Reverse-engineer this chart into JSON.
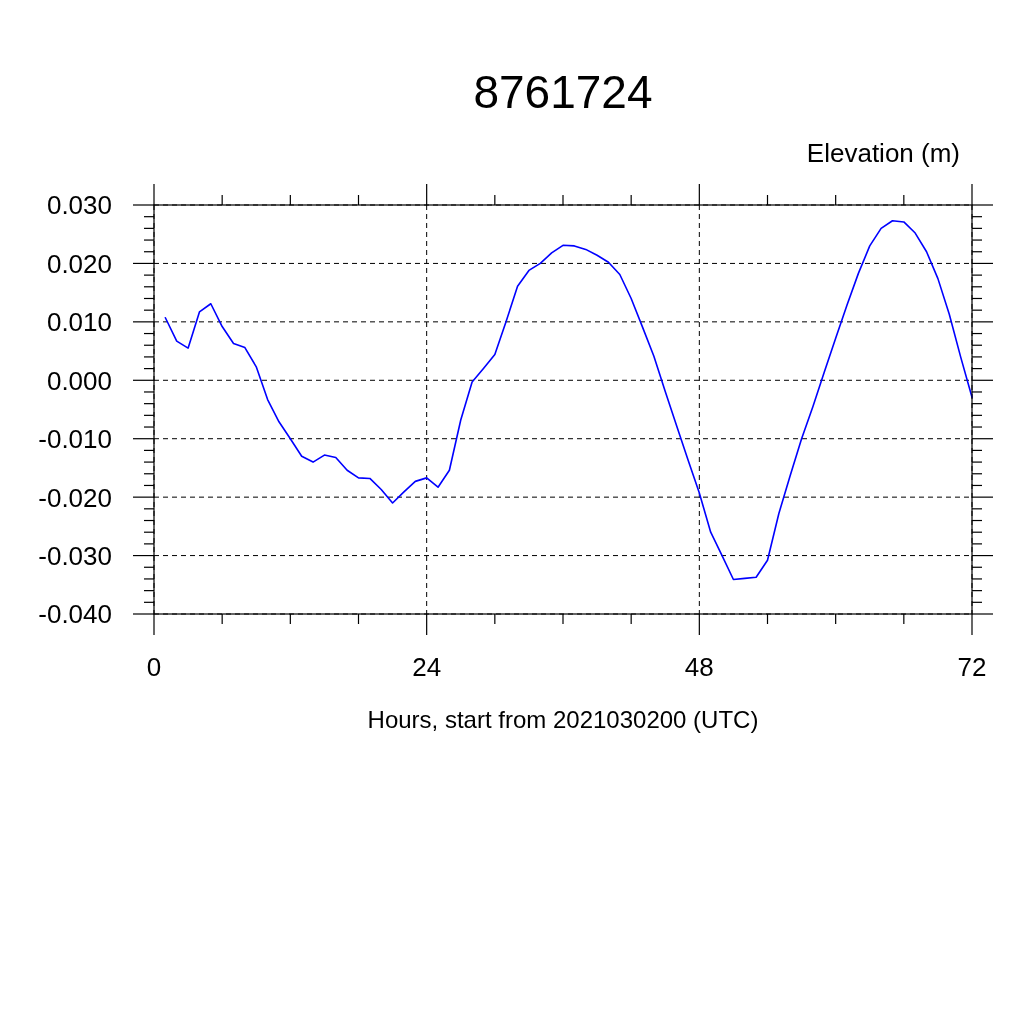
{
  "chart_data": {
    "type": "line",
    "title": "8761724",
    "ylabel": "Elevation (m)",
    "xlabel": "Hours, start from 2021030200 (UTC)",
    "x": [
      1,
      2,
      3,
      4,
      5,
      6,
      7,
      8,
      9,
      10,
      11,
      12,
      13,
      14,
      15,
      16,
      17,
      18,
      19,
      20,
      21,
      22,
      23,
      24,
      25,
      26,
      27,
      28,
      29,
      30,
      31,
      32,
      33,
      34,
      35,
      36,
      37,
      38,
      39,
      40,
      41,
      42,
      43,
      44,
      45,
      46,
      47,
      48,
      49,
      50,
      51,
      52,
      53,
      54,
      55,
      56,
      57,
      58,
      59,
      60,
      61,
      62,
      63,
      64,
      65,
      66,
      67,
      68,
      69,
      70,
      71,
      72
    ],
    "series": [
      {
        "color": "#0000ff",
        "values": [
          0.0107,
          0.0067,
          0.0055,
          0.0117,
          0.0131,
          0.0092,
          0.0063,
          0.0056,
          0.0023,
          -0.0033,
          -0.0071,
          -0.01,
          -0.013,
          -0.014,
          -0.0128,
          -0.0132,
          -0.0154,
          -0.0167,
          -0.0168,
          -0.0187,
          -0.021,
          -0.0191,
          -0.0173,
          -0.0167,
          -0.0183,
          -0.0154,
          -0.0068,
          -0.0003,
          0.002,
          0.0044,
          0.0101,
          0.0161,
          0.0188,
          0.02,
          0.0218,
          0.0231,
          0.023,
          0.0224,
          0.0214,
          0.0202,
          0.0181,
          0.014,
          0.0091,
          0.0041,
          -0.0019,
          -0.0078,
          -0.0136,
          -0.0193,
          -0.026,
          -0.03,
          -0.0341,
          -0.0339,
          -0.0337,
          -0.0308,
          -0.0228,
          -0.0163,
          -0.01,
          -0.0045,
          0.0014,
          0.0072,
          0.0129,
          0.0183,
          0.023,
          0.026,
          0.0273,
          0.0271,
          0.0252,
          0.022,
          0.0174,
          0.0113,
          0.004,
          -0.0029
        ]
      }
    ],
    "xlim": [
      0,
      72
    ],
    "ylim": [
      -0.04,
      0.03
    ],
    "xticks": [
      0,
      {
        "value": 6,
        "label": null
      },
      {
        "value": 12,
        "label": null
      },
      {
        "value": 18,
        "label": null
      },
      24,
      {
        "value": 30,
        "label": null
      },
      {
        "value": 36,
        "label": null
      },
      {
        "value": 42,
        "label": null
      },
      48,
      {
        "value": 54,
        "label": null
      },
      {
        "value": 60,
        "label": null
      },
      {
        "value": 66,
        "label": null
      },
      72
    ],
    "yticks": [
      {
        "value": -0.04,
        "label": "-0.040"
      },
      {
        "value": -0.038,
        "label": null
      },
      {
        "value": -0.036,
        "label": null
      },
      {
        "value": -0.034,
        "label": null
      },
      {
        "value": -0.032,
        "label": null
      },
      {
        "value": -0.03,
        "label": "-0.030"
      },
      {
        "value": -0.028,
        "label": null
      },
      {
        "value": -0.026,
        "label": null
      },
      {
        "value": -0.024,
        "label": null
      },
      {
        "value": -0.022,
        "label": null
      },
      {
        "value": -0.02,
        "label": "-0.020"
      },
      {
        "value": -0.018,
        "label": null
      },
      {
        "value": -0.016,
        "label": null
      },
      {
        "value": -0.014,
        "label": null
      },
      {
        "value": -0.012,
        "label": null
      },
      {
        "value": -0.01,
        "label": "-0.010"
      },
      {
        "value": -0.008,
        "label": null
      },
      {
        "value": -0.006,
        "label": null
      },
      {
        "value": -0.004,
        "label": null
      },
      {
        "value": -0.002,
        "label": null
      },
      {
        "value": 0,
        "label": "0.000"
      },
      {
        "value": 0.002,
        "label": null
      },
      {
        "value": 0.004,
        "label": null
      },
      {
        "value": 0.006,
        "label": null
      },
      {
        "value": 0.008,
        "label": null
      },
      {
        "value": 0.01,
        "label": "0.010"
      },
      {
        "value": 0.012,
        "label": null
      },
      {
        "value": 0.014,
        "label": null
      },
      {
        "value": 0.016,
        "label": null
      },
      {
        "value": 0.018,
        "label": null
      },
      {
        "value": 0.02,
        "label": "0.020"
      },
      {
        "value": 0.022,
        "label": null
      },
      {
        "value": 0.024,
        "label": null
      },
      {
        "value": 0.026,
        "label": null
      },
      {
        "value": 0.028,
        "label": null
      },
      {
        "value": 0.03,
        "label": "0.030"
      }
    ],
    "grid": true
  }
}
